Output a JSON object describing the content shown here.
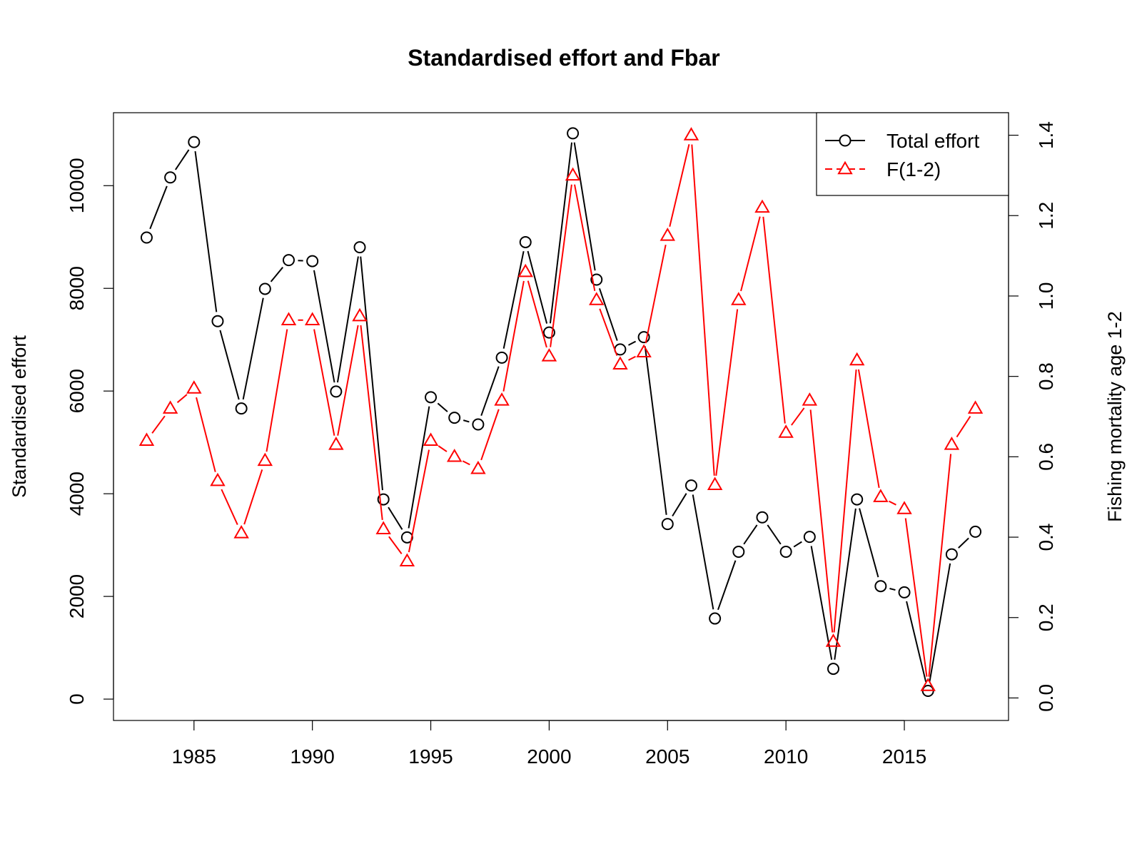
{
  "chart_data": {
    "type": "line",
    "title": "Standardised effort and Fbar",
    "ylabel": "Standardised effort",
    "y2label": "Fishing mortality age 1-2",
    "x_ticks": [
      1985,
      1990,
      1995,
      2000,
      2005,
      2010,
      2015
    ],
    "y_ticks": [
      0,
      2000,
      4000,
      6000,
      8000,
      10000
    ],
    "y2_ticks": [
      "0.0",
      "0.2",
      "0.4",
      "0.6",
      "0.8",
      "1.0",
      "1.2",
      "1.4"
    ],
    "xlim": [
      1981.6,
      2019.4
    ],
    "ylim": [
      -416,
      11421
    ],
    "y2lim": [
      -0.056,
      1.456
    ],
    "grid": false,
    "legend_position": "top-right",
    "x": [
      1983,
      1984,
      1985,
      1986,
      1987,
      1988,
      1989,
      1990,
      1991,
      1992,
      1993,
      1994,
      1995,
      1996,
      1997,
      1998,
      1999,
      2000,
      2001,
      2002,
      2003,
      2004,
      2005,
      2006,
      2007,
      2008,
      2009,
      2010,
      2011,
      2012,
      2013,
      2014,
      2015,
      2016,
      2017,
      2018
    ],
    "series": [
      {
        "name": "Total effort",
        "axis": "left",
        "color": "#000000",
        "marker": "circle",
        "values": [
          8990,
          10160,
          10850,
          7360,
          5660,
          7990,
          8550,
          8530,
          5990,
          8800,
          3890,
          3150,
          5880,
          5480,
          5350,
          6650,
          8900,
          7140,
          11020,
          8170,
          6810,
          7050,
          3410,
          4160,
          1570,
          2870,
          3540,
          2870,
          3160,
          590,
          3890,
          2200,
          2080,
          160,
          2820,
          3260
        ]
      },
      {
        "name": "F(1-2)",
        "axis": "right",
        "color": "#ff0000",
        "marker": "triangle",
        "values": [
          0.64,
          0.72,
          0.77,
          0.54,
          0.41,
          0.59,
          0.94,
          0.94,
          0.63,
          0.95,
          0.42,
          0.34,
          0.64,
          0.6,
          0.57,
          0.74,
          1.06,
          0.85,
          1.3,
          0.99,
          0.83,
          0.86,
          1.15,
          1.4,
          0.53,
          0.99,
          1.22,
          0.66,
          0.74,
          0.14,
          0.84,
          0.5,
          0.47,
          0.03,
          0.63,
          0.72
        ]
      }
    ]
  }
}
